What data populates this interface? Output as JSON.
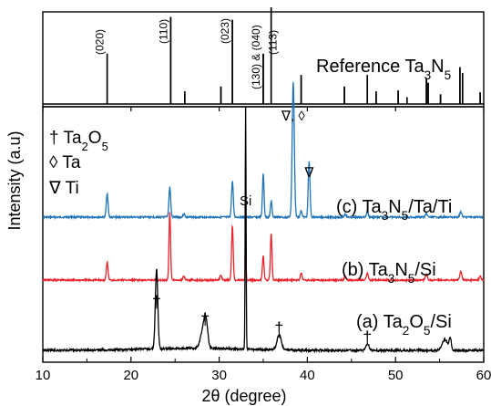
{
  "chart_data": {
    "type": "line",
    "xlabel": "2θ (degree)",
    "ylabel": "Intensity (a.u)",
    "xlim": [
      10,
      60
    ],
    "x_ticks": [
      "10",
      "20",
      "30",
      "40",
      "50",
      "60"
    ],
    "grid": false,
    "legend_entries": [
      {
        "symbol": "†",
        "formula": [
          "Ta",
          {
            "sub": "2"
          },
          "O",
          {
            "sub": "5"
          }
        ]
      },
      {
        "symbol": "◊",
        "formula": [
          "Ta"
        ]
      },
      {
        "symbol": "∇",
        "formula": [
          "Ti"
        ]
      }
    ],
    "series": [
      {
        "key": "a",
        "label": [
          "(a) Ta",
          {
            "sub": "2"
          },
          "O",
          {
            "sub": "5"
          },
          "/Si"
        ],
        "color": "#000000",
        "peaks": [
          {
            "x": 22.9,
            "h": 0.38,
            "w": 0.14
          },
          {
            "x": 28.2,
            "h": 0.09,
            "w": 0.3
          },
          {
            "x": 28.5,
            "h": 0.1,
            "w": 0.2
          },
          {
            "x": 33.0,
            "h": 1.15,
            "w": 0.05
          },
          {
            "x": 36.8,
            "h": 0.07,
            "w": 0.25
          },
          {
            "x": 46.8,
            "h": 0.03,
            "w": 0.2
          },
          {
            "x": 55.6,
            "h": 0.05,
            "w": 0.3
          },
          {
            "x": 56.2,
            "h": 0.06,
            "w": 0.12
          }
        ]
      },
      {
        "key": "b",
        "label": [
          "(b) Ta",
          {
            "sub": "3"
          },
          "N",
          {
            "sub": "5"
          },
          "/Si"
        ],
        "color": "#e8242c",
        "peaks": [
          {
            "x": 17.3,
            "h": 0.13,
            "w": 0.1
          },
          {
            "x": 24.4,
            "h": 0.5,
            "w": 0.09
          },
          {
            "x": 26.0,
            "h": 0.03,
            "w": 0.1
          },
          {
            "x": 30.2,
            "h": 0.04,
            "w": 0.1
          },
          {
            "x": 31.5,
            "h": 0.4,
            "w": 0.09
          },
          {
            "x": 33.0,
            "h": 0.45,
            "w": 0.04
          },
          {
            "x": 35.0,
            "h": 0.18,
            "w": 0.09
          },
          {
            "x": 35.9,
            "h": 0.34,
            "w": 0.09
          },
          {
            "x": 39.3,
            "h": 0.05,
            "w": 0.1
          },
          {
            "x": 44.3,
            "h": 0.03,
            "w": 0.1
          },
          {
            "x": 46.8,
            "h": 0.05,
            "w": 0.1
          },
          {
            "x": 53.5,
            "h": 0.04,
            "w": 0.12
          },
          {
            "x": 57.4,
            "h": 0.06,
            "w": 0.12
          },
          {
            "x": 59.6,
            "h": 0.03,
            "w": 0.1
          }
        ]
      },
      {
        "key": "c",
        "label": [
          "(c) Ta",
          {
            "sub": "3"
          },
          "N",
          {
            "sub": "5"
          },
          "/Ta/Ti"
        ],
        "color": "#1f73b7",
        "peaks": [
          {
            "x": 17.3,
            "h": 0.22,
            "w": 0.1
          },
          {
            "x": 24.4,
            "h": 0.28,
            "w": 0.1
          },
          {
            "x": 26.0,
            "h": 0.03,
            "w": 0.1
          },
          {
            "x": 31.5,
            "h": 0.33,
            "w": 0.1
          },
          {
            "x": 35.0,
            "h": 0.4,
            "w": 0.09
          },
          {
            "x": 35.9,
            "h": 0.15,
            "w": 0.09
          },
          {
            "x": 38.4,
            "h": 1.25,
            "w": 0.12
          },
          {
            "x": 39.3,
            "h": 0.06,
            "w": 0.1
          },
          {
            "x": 40.2,
            "h": 0.52,
            "w": 0.1
          },
          {
            "x": 44.3,
            "h": 0.03,
            "w": 0.1
          },
          {
            "x": 46.8,
            "h": 0.05,
            "w": 0.1
          },
          {
            "x": 53.5,
            "h": 0.04,
            "w": 0.1
          },
          {
            "x": 57.4,
            "h": 0.05,
            "w": 0.12
          }
        ]
      },
      {
        "key": "ref",
        "label": [
          "Reference Ta",
          {
            "sub": "3"
          },
          "N",
          {
            "sub": "5"
          }
        ],
        "color": "#000000",
        "sticks": [
          {
            "x": 17.3,
            "h": 0.52
          },
          {
            "x": 24.5,
            "h": 0.9
          },
          {
            "x": 26.1,
            "h": 0.13
          },
          {
            "x": 30.2,
            "h": 0.18
          },
          {
            "x": 31.5,
            "h": 0.87
          },
          {
            "x": 35.0,
            "h": 0.52
          },
          {
            "x": 35.9,
            "h": 1.0
          },
          {
            "x": 39.3,
            "h": 0.3
          },
          {
            "x": 44.2,
            "h": 0.18
          },
          {
            "x": 46.8,
            "h": 0.3
          },
          {
            "x": 47.8,
            "h": 0.13
          },
          {
            "x": 50.3,
            "h": 0.14
          },
          {
            "x": 51.3,
            "h": 0.07
          },
          {
            "x": 53.5,
            "h": 0.27
          },
          {
            "x": 53.7,
            "h": 0.22
          },
          {
            "x": 55.1,
            "h": 0.1
          },
          {
            "x": 57.3,
            "h": 0.38
          },
          {
            "x": 57.6,
            "h": 0.32
          },
          {
            "x": 59.6,
            "h": 0.12
          }
        ]
      }
    ],
    "hkl_labels": [
      {
        "text": "(020)",
        "x": 17.3
      },
      {
        "text": "(110)",
        "x": 24.5
      },
      {
        "text": "(023)",
        "x": 31.5
      },
      {
        "text": "(130) & (040)",
        "x": 35.0
      },
      {
        "text": "(113)",
        "x": 36.9
      }
    ],
    "peak_markers": [
      {
        "text": "†",
        "x": 22.9,
        "series": "a"
      },
      {
        "text": "†",
        "x": 28.4,
        "series": "a"
      },
      {
        "text": "†",
        "x": 36.8,
        "series": "a"
      },
      {
        "text": "†",
        "x": 46.8,
        "series": "a"
      },
      {
        "text": "Si",
        "x": 33.0,
        "series": "b"
      },
      {
        "text": "∇, ◊",
        "x": 38.4,
        "series": "c"
      },
      {
        "text": "∇",
        "x": 40.2,
        "series": "c"
      }
    ]
  }
}
